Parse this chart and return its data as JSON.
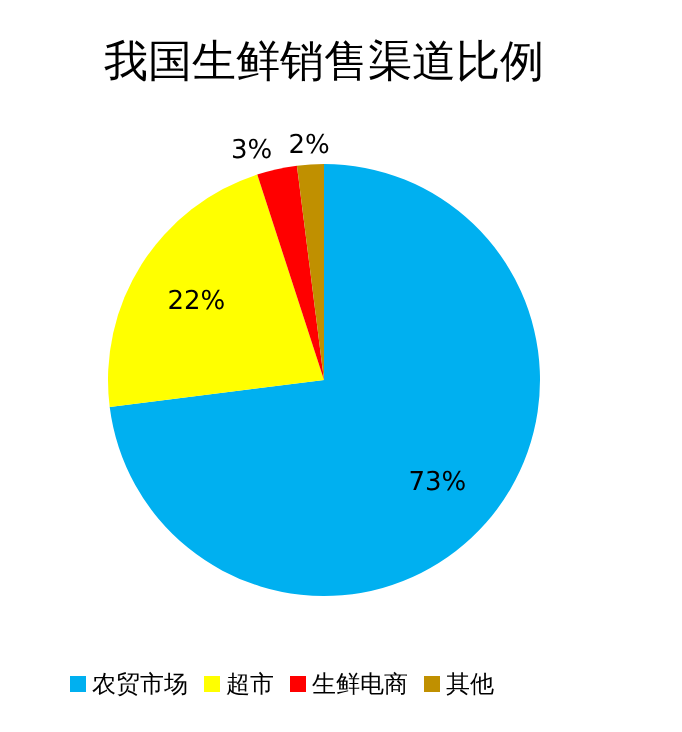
{
  "chart_data": {
    "type": "pie",
    "title": "我国生鲜销售渠道比例",
    "categories": [
      "农贸市场",
      "超市",
      "生鲜电商",
      "其他"
    ],
    "values": [
      73,
      22,
      3,
      2
    ],
    "colors": [
      "#00b0f0",
      "#ffff00",
      "#ff0000",
      "#c09000"
    ],
    "value_labels": [
      "73%",
      "22%",
      "3%",
      "2%"
    ],
    "legend": "bottom"
  }
}
